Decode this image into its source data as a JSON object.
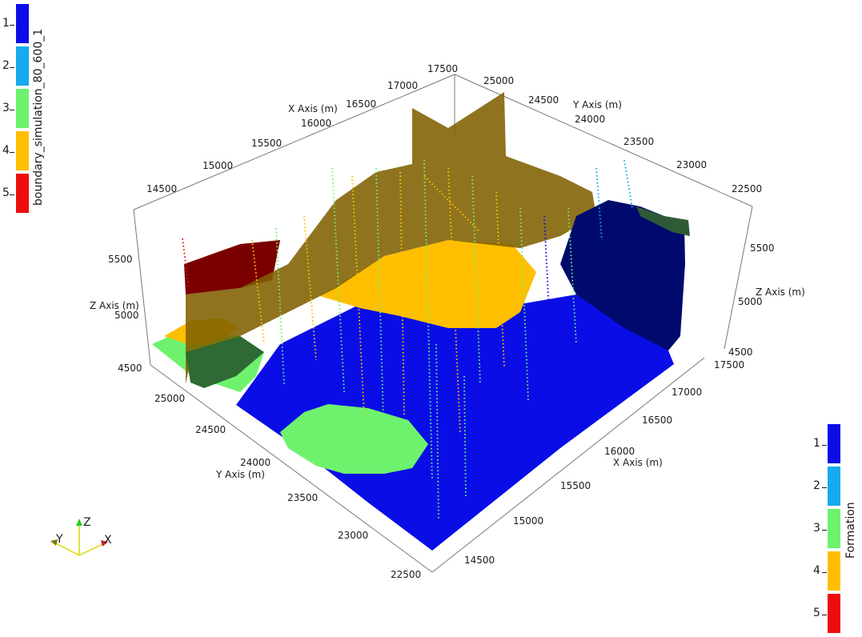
{
  "legend_left": {
    "title": "boundary_simulation_80_600_1",
    "items": [
      {
        "label": "1",
        "color": "#0a0de6"
      },
      {
        "label": "2",
        "color": "#14aaee"
      },
      {
        "label": "3",
        "color": "#6ef26e"
      },
      {
        "label": "4",
        "color": "#ffbf00"
      },
      {
        "label": "5",
        "color": "#ee0d0d"
      }
    ]
  },
  "legend_right": {
    "title": "Formation",
    "items": [
      {
        "label": "1",
        "color": "#0a0de6"
      },
      {
        "label": "2",
        "color": "#14aaee"
      },
      {
        "label": "3",
        "color": "#6ef26e"
      },
      {
        "label": "4",
        "color": "#ffbf00"
      },
      {
        "label": "5",
        "color": "#ee0d0d"
      }
    ]
  },
  "axes": {
    "x_top": {
      "title": "X Axis (m)",
      "ticks": [
        "14500",
        "15000",
        "15500",
        "16000",
        "16500",
        "17000",
        "17500"
      ]
    },
    "y_top": {
      "title": "Y Axis (m)",
      "ticks": [
        "25000",
        "24500",
        "24000",
        "23500",
        "23000",
        "22500"
      ]
    },
    "z_left": {
      "title": "Z Axis (m)",
      "ticks": [
        "4500",
        "5000",
        "5500"
      ]
    },
    "z_right": {
      "title": "Z Axis (m)",
      "ticks": [
        "4500",
        "5000",
        "5500"
      ]
    },
    "y_bottom": {
      "title": "Y Axis (m)",
      "ticks": [
        "25000",
        "24500",
        "24000",
        "23500",
        "23000",
        "22500"
      ]
    },
    "x_bottom": {
      "title": "X Axis (m)",
      "ticks": [
        "17500",
        "17000",
        "16500",
        "16000",
        "15500",
        "15000",
        "14500"
      ]
    }
  },
  "orientation_widget": {
    "x": "X",
    "y": "Y",
    "z": "Z"
  }
}
